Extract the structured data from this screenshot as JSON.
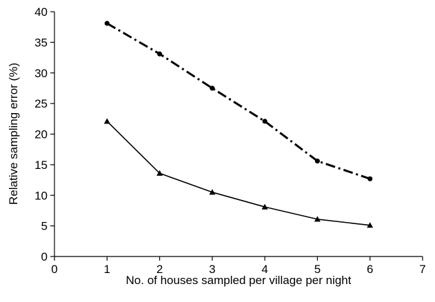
{
  "chart_data": {
    "type": "line",
    "title": "",
    "xlabel": "No. of houses sampled per village per night",
    "ylabel": "Relative sampling error (%)",
    "xlim": [
      0,
      7
    ],
    "ylim": [
      0,
      40
    ],
    "xticks": [
      0,
      1,
      2,
      3,
      4,
      5,
      6,
      7
    ],
    "yticks": [
      0,
      5,
      10,
      15,
      20,
      25,
      30,
      35,
      40
    ],
    "grid": false,
    "legend": "none",
    "series": [
      {
        "style": "dash-dot",
        "marker": "circle",
        "color": "#000000",
        "x": [
          1,
          2,
          3,
          4,
          5,
          6
        ],
        "y": [
          38.1,
          33.1,
          27.5,
          22.1,
          15.6,
          12.7
        ]
      },
      {
        "style": "solid",
        "marker": "triangle",
        "color": "#000000",
        "x": [
          1,
          2,
          3,
          4,
          5,
          6
        ],
        "y": [
          22.1,
          13.6,
          10.5,
          8.1,
          6.1,
          5.1
        ]
      }
    ]
  }
}
